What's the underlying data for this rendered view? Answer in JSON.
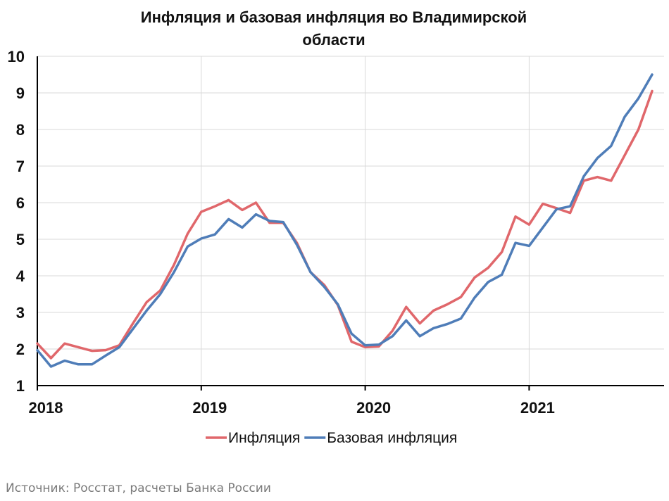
{
  "chart_data": {
    "type": "line",
    "title_lines": [
      "Инфляция и базовая инфляция во Владимирской",
      "области"
    ],
    "xlabel": "",
    "ylabel": "",
    "ylim": [
      1,
      10
    ],
    "y_ticks": [
      1,
      2,
      3,
      4,
      5,
      6,
      7,
      8,
      9,
      10
    ],
    "x_ticks": [
      {
        "label": "2018",
        "x": 0
      },
      {
        "label": "2019",
        "x": 12
      },
      {
        "label": "2020",
        "x": 24
      },
      {
        "label": "2021",
        "x": 36
      }
    ],
    "xlim": [
      0,
      46
    ],
    "grid": "vertical at years, horizontal at each integer",
    "legend_position": "bottom-center",
    "series": [
      {
        "name": "Инфляция",
        "color": "#e0676b",
        "values": [
          2.15,
          1.75,
          2.15,
          2.05,
          1.95,
          1.97,
          2.1,
          2.7,
          3.28,
          3.6,
          4.3,
          5.15,
          5.75,
          5.9,
          6.07,
          5.8,
          6.0,
          5.45,
          5.45,
          4.9,
          4.1,
          3.75,
          3.2,
          2.2,
          2.05,
          2.07,
          2.5,
          3.15,
          2.7,
          3.05,
          3.22,
          3.42,
          3.95,
          4.22,
          4.65,
          5.62,
          5.4,
          5.97,
          5.85,
          5.72,
          6.6,
          6.7,
          6.6,
          7.3,
          8.0,
          9.05
        ]
      },
      {
        "name": "Базовая инфляция",
        "color": "#4f7db8",
        "values": [
          1.97,
          1.52,
          1.68,
          1.58,
          1.58,
          1.82,
          2.05,
          2.55,
          3.05,
          3.5,
          4.1,
          4.8,
          5.02,
          5.13,
          5.55,
          5.32,
          5.68,
          5.5,
          5.47,
          4.85,
          4.1,
          3.7,
          3.22,
          2.42,
          2.1,
          2.12,
          2.35,
          2.78,
          2.35,
          2.57,
          2.68,
          2.83,
          3.4,
          3.83,
          4.03,
          4.9,
          4.82,
          5.32,
          5.82,
          5.9,
          6.72,
          7.22,
          7.55,
          8.35,
          8.85,
          9.5
        ]
      }
    ]
  },
  "source": "Источник: Росстат, расчеты Банка России"
}
